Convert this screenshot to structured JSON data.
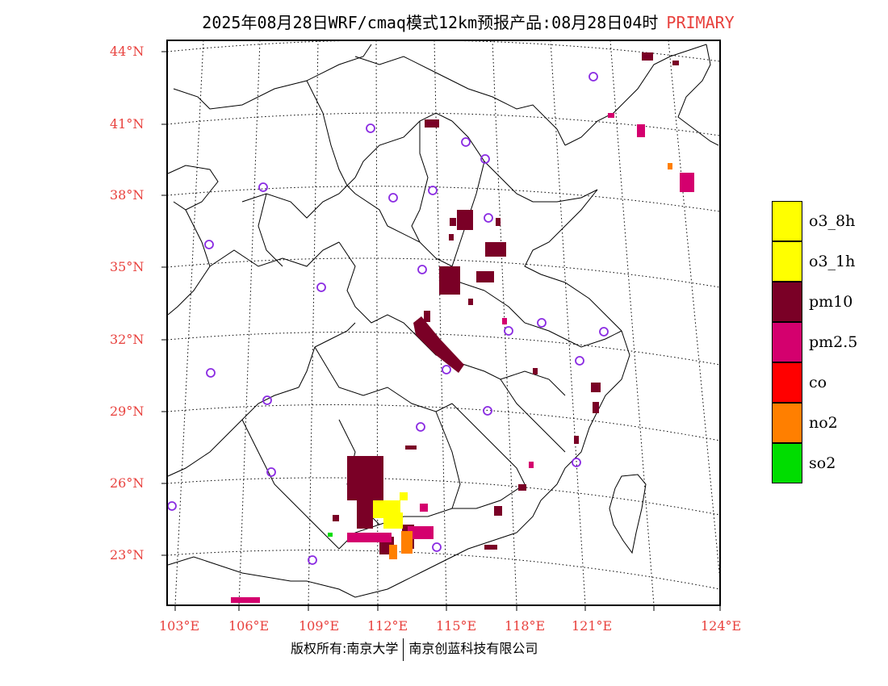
{
  "title": {
    "text": "2025年08月28日WRF/cmaq模式12km预报产品:08月28日04时",
    "tag": "PRIMARY"
  },
  "map": {
    "lat_labels": [
      "44°N",
      "41°N",
      "38°N",
      "35°N",
      "32°N",
      "29°N",
      "26°N",
      "23°N"
    ],
    "lon_labels": [
      "103°E",
      "106°E",
      "109°E",
      "112°E",
      "115°E",
      "118°E",
      "121°E",
      "124°E"
    ]
  },
  "legend": [
    {
      "label": "o3_8h",
      "color": "#ffff00"
    },
    {
      "label": "o3_1h",
      "color": "#ffff00"
    },
    {
      "label": "pm10",
      "color": "#7a0026"
    },
    {
      "label": "pm2.5",
      "color": "#d4006e"
    },
    {
      "label": "co",
      "color": "#ff0000"
    },
    {
      "label": "no2",
      "color": "#ff7f00"
    },
    {
      "label": "so2",
      "color": "#00dd00"
    }
  ],
  "footer": {
    "left": "版权所有:南京大学",
    "right": "南京创蓝科技有限公司"
  }
}
